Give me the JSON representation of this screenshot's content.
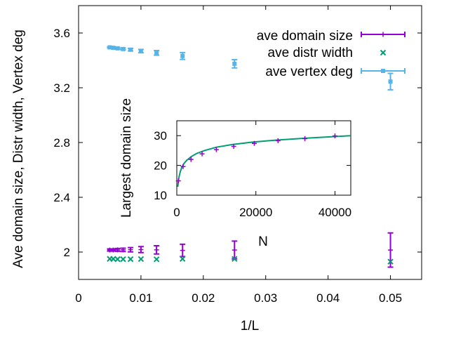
{
  "colors": {
    "domain": "#9400D3",
    "distr": "#009E73",
    "vertex": "#56B4E9",
    "fit": "#009E73",
    "axis": "#000000"
  },
  "chart_data": [
    {
      "id": "main",
      "type": "scatter",
      "xlabel": "1/L",
      "ylabel": "Ave domain size, Distr width, Vertex deg",
      "xlim": [
        0,
        0.055
      ],
      "ylim": [
        1.8,
        3.8
      ],
      "xticks": [
        0,
        0.01,
        0.02,
        0.03,
        0.04,
        0.05
      ],
      "xtick_labels": [
        "0",
        "0.01",
        "0.02",
        "0.03",
        "0.04",
        "0.05"
      ],
      "yticks": [
        2.0,
        2.4,
        2.8,
        3.2,
        3.6
      ],
      "ytick_labels": [
        "2",
        "2.4",
        "2.8",
        "3.2",
        "3.6"
      ],
      "legend_position": "top-right",
      "series": [
        {
          "key": "domain",
          "name": "ave domain size",
          "marker": "plus",
          "errorbars": true,
          "points": [
            {
              "x": 0.005,
              "y": 2.015,
              "err": 0.008
            },
            {
              "x": 0.00556,
              "y": 2.015,
              "err": 0.008
            },
            {
              "x": 0.00625,
              "y": 2.016,
              "err": 0.01
            },
            {
              "x": 0.00714,
              "y": 2.016,
              "err": 0.012
            },
            {
              "x": 0.00833,
              "y": 2.017,
              "err": 0.016
            },
            {
              "x": 0.01,
              "y": 2.018,
              "err": 0.022
            },
            {
              "x": 0.0125,
              "y": 2.016,
              "err": 0.03
            },
            {
              "x": 0.01667,
              "y": 2.012,
              "err": 0.045
            },
            {
              "x": 0.025,
              "y": 2.015,
              "err": 0.065
            },
            {
              "x": 0.05,
              "y": 2.015,
              "err": 0.125
            }
          ]
        },
        {
          "key": "distr",
          "name": "ave distr width",
          "marker": "cross",
          "errorbars": false,
          "points": [
            {
              "x": 0.005,
              "y": 1.95
            },
            {
              "x": 0.00556,
              "y": 1.95
            },
            {
              "x": 0.00625,
              "y": 1.948
            },
            {
              "x": 0.00714,
              "y": 1.948
            },
            {
              "x": 0.00833,
              "y": 1.948
            },
            {
              "x": 0.01,
              "y": 1.949
            },
            {
              "x": 0.0125,
              "y": 1.947
            },
            {
              "x": 0.01667,
              "y": 1.95
            },
            {
              "x": 0.025,
              "y": 1.95
            },
            {
              "x": 0.05,
              "y": 1.93
            }
          ]
        },
        {
          "key": "vertex",
          "name": "ave vertex deg",
          "marker": "square",
          "errorbars": true,
          "points": [
            {
              "x": 0.005,
              "y": 3.495,
              "err": 0.004
            },
            {
              "x": 0.00556,
              "y": 3.492,
              "err": 0.005
            },
            {
              "x": 0.00625,
              "y": 3.488,
              "err": 0.006
            },
            {
              "x": 0.00714,
              "y": 3.483,
              "err": 0.007
            },
            {
              "x": 0.00833,
              "y": 3.478,
              "err": 0.009
            },
            {
              "x": 0.01,
              "y": 3.468,
              "err": 0.012
            },
            {
              "x": 0.0125,
              "y": 3.455,
              "err": 0.017
            },
            {
              "x": 0.01667,
              "y": 3.432,
              "err": 0.025
            },
            {
              "x": 0.025,
              "y": 3.375,
              "err": 0.03
            },
            {
              "x": 0.05,
              "y": 3.245,
              "err": 0.06
            }
          ]
        }
      ]
    },
    {
      "id": "inset",
      "type": "scatter",
      "xlabel": "N",
      "ylabel": "Largest domain size",
      "xlim": [
        0,
        44000
      ],
      "ylim": [
        10,
        35
      ],
      "xticks": [
        0,
        20000,
        40000
      ],
      "xtick_labels": [
        "0",
        "20000",
        "40000"
      ],
      "yticks": [
        10,
        20,
        30
      ],
      "ytick_labels": [
        "10",
        "20",
        "30"
      ],
      "series": [
        {
          "key": "domain",
          "name": "largest domain size",
          "marker": "plus",
          "points": [
            {
              "x": 400,
              "y": 14.8
            },
            {
              "x": 1600,
              "y": 19.6
            },
            {
              "x": 3600,
              "y": 22.0
            },
            {
              "x": 6400,
              "y": 23.9
            },
            {
              "x": 10000,
              "y": 25.3
            },
            {
              "x": 14400,
              "y": 26.4
            },
            {
              "x": 19600,
              "y": 27.4
            },
            {
              "x": 25600,
              "y": 28.3
            },
            {
              "x": 32400,
              "y": 29.0
            },
            {
              "x": 40000,
              "y": 29.9
            }
          ]
        }
      ],
      "fit": {
        "key": "fit",
        "name": "fit",
        "x": [
          250,
          400,
          600,
          900,
          1300,
          1800,
          2500,
          3600,
          5000,
          7000,
          10000,
          14000,
          19000,
          25000,
          32000,
          40000,
          44000
        ],
        "y": [
          12.8,
          14.8,
          16.4,
          18.0,
          19.4,
          20.6,
          21.7,
          22.9,
          24.0,
          25.0,
          26.1,
          27.0,
          27.8,
          28.5,
          29.1,
          29.7,
          30.0
        ]
      }
    }
  ]
}
